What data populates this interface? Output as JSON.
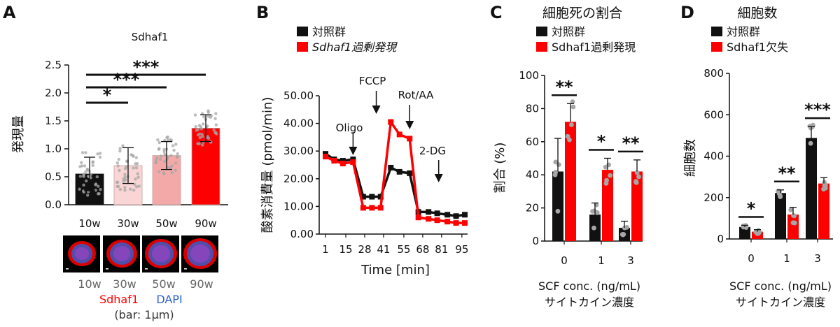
{
  "panel_labels": [
    "A",
    "B",
    "C",
    "D"
  ],
  "colors": {
    "black": "#111111",
    "red": "#ff0000",
    "bar_10w": "#111111",
    "bar_30w": "#f9d5d5",
    "bar_50w": "#f4a9a9",
    "bar_90w": "#ff0000",
    "dot_grey": "#a6a6a6",
    "dapi_blue": "#2e62d6"
  },
  "panel_a": {
    "caption_sdhaf1": "Sdhaf1",
    "caption_dapi": "DAPI",
    "caption_bar": "(bar: 1μm)",
    "image_labels": [
      "10w",
      "30w",
      "50w",
      "90w"
    ]
  },
  "panel_b": {
    "legend": [
      "対照群",
      "Sdhaf1過剰発現"
    ],
    "annotations": [
      "Oligo",
      "FCCP",
      "Rot/AA",
      "2-DG"
    ]
  },
  "panel_c": {
    "legend": [
      "対照群",
      "Sdhaf1過剰発現"
    ],
    "xlabel_line2": "サイトカイン濃度"
  },
  "panel_d": {
    "legend": [
      "対照群",
      "Sdhaf1欠失"
    ],
    "xlabel_line2": "サイトカイン濃度"
  },
  "chart_data": [
    {
      "panel": "A",
      "type": "bar",
      "title": "Sdhaf1",
      "ylabel": "発現量",
      "categories": [
        "10w",
        "30w",
        "50w",
        "90w"
      ],
      "values": [
        0.55,
        0.7,
        0.88,
        1.37
      ],
      "errors": [
        0.3,
        0.32,
        0.25,
        0.24
      ],
      "ylim": [
        0,
        2.5
      ],
      "yticks": [
        "0.0",
        "0.5",
        "1.0",
        "1.5",
        "2.0",
        "2.5"
      ],
      "significance": [
        {
          "from": "10w",
          "to": "30w",
          "label": "*"
        },
        {
          "from": "10w",
          "to": "50w",
          "label": "***"
        },
        {
          "from": "10w",
          "to": "90w",
          "label": "***"
        }
      ]
    },
    {
      "panel": "B",
      "type": "line",
      "xlabel": "Time [min]",
      "ylabel": "酸素消費量 (pmol/min)",
      "ylim": [
        0,
        50
      ],
      "yticks": [
        "0.00",
        "10.00",
        "20.00",
        "30.00",
        "40.00",
        "50.00"
      ],
      "xticks": [
        "1",
        "15",
        "28",
        "41",
        "55",
        "68",
        "81",
        "95"
      ],
      "x": [
        1,
        7,
        13,
        20,
        27,
        33,
        39,
        46,
        52,
        59,
        65,
        72,
        78,
        85,
        91,
        97
      ],
      "series": [
        {
          "name": "対照群",
          "values": [
            29,
            27,
            26.5,
            27,
            13.5,
            13.5,
            13.5,
            24,
            22.5,
            22,
            8,
            8,
            7.5,
            7,
            6.5,
            7
          ]
        },
        {
          "name": "Sdhaf1過剰発現",
          "values": [
            28,
            26.5,
            25.5,
            26,
            9.5,
            9.5,
            9.5,
            40.5,
            36,
            34.5,
            6,
            5.5,
            5,
            4.5,
            4,
            4
          ]
        }
      ]
    },
    {
      "panel": "C",
      "type": "bar",
      "title": "細胞死の割合",
      "xlabel": "SCF conc. (ng/mL)",
      "ylabel": "割合 (%)",
      "categories": [
        "0",
        "1",
        "3"
      ],
      "ylim": [
        0,
        100
      ],
      "yticks": [
        "0",
        "20",
        "40",
        "60",
        "80",
        "100"
      ],
      "series": [
        {
          "name": "対照群",
          "values": [
            42,
            16,
            8
          ],
          "errors": [
            20,
            7,
            4
          ]
        },
        {
          "name": "Sdhaf1過剰発現",
          "values": [
            72,
            43,
            42
          ],
          "errors": [
            11,
            7,
            7
          ]
        }
      ],
      "significance": [
        "**",
        "*",
        "**"
      ]
    },
    {
      "panel": "D",
      "type": "bar",
      "title": "細胞数",
      "xlabel": "SCF conc. (ng/mL)",
      "ylabel": "細胞数",
      "categories": [
        "0",
        "1",
        "3"
      ],
      "ylim": [
        0,
        800
      ],
      "yticks": [
        "0",
        "200",
        "400",
        "600",
        "800"
      ],
      "series": [
        {
          "name": "対照群",
          "values": [
            58,
            222,
            488
          ],
          "errors": [
            8,
            15,
            55
          ]
        },
        {
          "name": "Sdhaf1欠失",
          "values": [
            35,
            118,
            268
          ],
          "errors": [
            10,
            35,
            28
          ]
        }
      ],
      "significance": [
        "*",
        "**",
        "***"
      ]
    }
  ]
}
